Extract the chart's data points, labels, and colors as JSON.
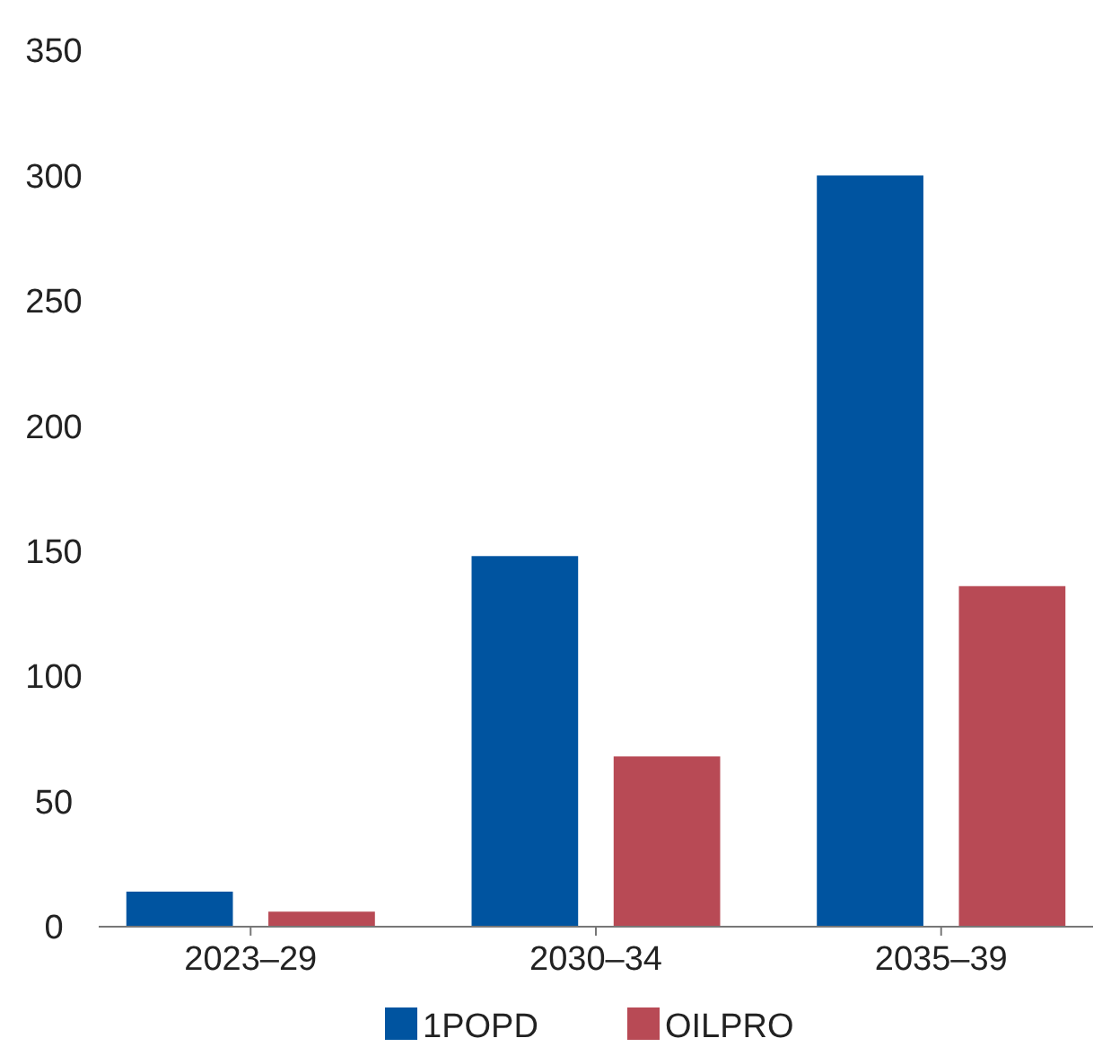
{
  "chart_data": {
    "type": "bar",
    "categories": [
      "2023–29",
      "2030–34",
      "2035–39"
    ],
    "series": [
      {
        "name": "1POPD",
        "color": "#0054a0",
        "values": [
          14,
          148,
          300
        ]
      },
      {
        "name": "OILPRO",
        "color": "#b84a55",
        "values": [
          6,
          68,
          136
        ]
      }
    ],
    "ylim": [
      0,
      350
    ],
    "yticks": [
      0,
      50,
      100,
      150,
      200,
      250,
      300,
      350
    ],
    "grid": false,
    "legend": "bottom"
  }
}
